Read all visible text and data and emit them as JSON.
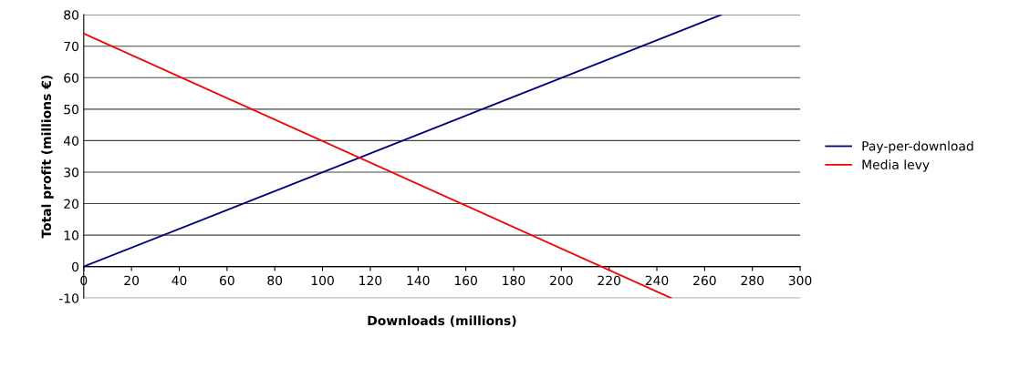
{
  "chart_data": {
    "type": "line",
    "xlabel": "Downloads (millions)",
    "ylabel": "Total profit (millions €)",
    "xlim": [
      0,
      300
    ],
    "xticks": [
      0,
      20,
      40,
      60,
      80,
      100,
      120,
      140,
      160,
      180,
      200,
      220,
      240,
      260,
      280,
      300
    ],
    "ylim": [
      -10,
      80
    ],
    "yticks": [
      -10,
      0,
      10,
      20,
      30,
      40,
      50,
      60,
      70,
      80
    ],
    "grid": "y",
    "legend": "right",
    "marker": "none",
    "line_style": "solid",
    "series": [
      {
        "name": "Pay-per-download",
        "color": "#000080",
        "x": [
          0,
          267
        ],
        "values": [
          0,
          80
        ]
      },
      {
        "name": "Media levy",
        "color": "#ff0000",
        "x": [
          0,
          246
        ],
        "values": [
          74,
          -10
        ]
      }
    ]
  }
}
